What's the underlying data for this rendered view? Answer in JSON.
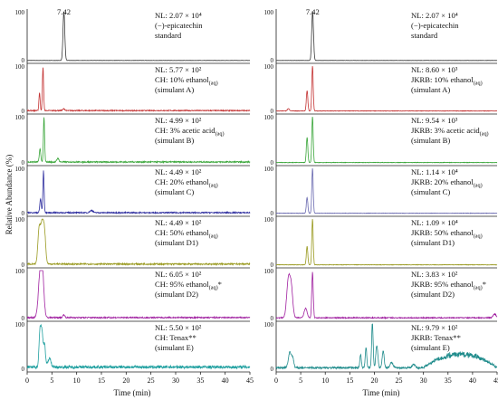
{
  "chart_data": {
    "type": "line",
    "ylabel": "Relative Abundance (%)",
    "xlabel": "Time (min)",
    "x_ticks": [
      "0",
      "5",
      "10",
      "15",
      "20",
      "25",
      "30",
      "35",
      "40",
      "45"
    ],
    "y_ticks": [
      "0",
      "100"
    ],
    "xlim": [
      0,
      45
    ],
    "ylim": [
      0,
      100
    ],
    "columns": [
      {
        "panels": [
          {
            "nl": "NL: 2.07 × 10⁴",
            "label": "(−)-epicatechin",
            "label2": "standard",
            "rt_label": "7.42",
            "color": "#3a3a3a",
            "peaks": [
              [
                7.42,
                100,
                0.18
              ]
            ],
            "noise": 0.5
          },
          {
            "nl": "NL: 5.77 × 10²",
            "label": "CH: 10% ethanol",
            "sub": "(aq)",
            "sim": "(simulant A)",
            "color": "#c43434",
            "peaks": [
              [
                2.5,
                40,
                0.12
              ],
              [
                3.2,
                95,
                0.12
              ],
              [
                7.4,
                4,
                0.2
              ]
            ],
            "noise": 2
          },
          {
            "nl": "NL: 4.99 × 10²",
            "label": "CH: 3% acetic acid",
            "sub": "(aq)",
            "sim": "(simulant B)",
            "color": "#3aa63a",
            "peaks": [
              [
                2.6,
                28,
                0.15
              ],
              [
                3.4,
                96,
                0.12
              ],
              [
                6.2,
                8,
                0.2
              ]
            ],
            "noise": 2.5
          },
          {
            "nl": "NL: 4.49 × 10²",
            "label": "CH: 20% ethanol",
            "sub": "(aq)",
            "sim": "(simulant C)",
            "color": "#3030a0",
            "peaks": [
              [
                2.7,
                30,
                0.15
              ],
              [
                3.3,
                92,
                0.12
              ],
              [
                13,
                5,
                0.3
              ]
            ],
            "noise": 2.5
          },
          {
            "nl": "NL: 4.49 × 10²",
            "label": "CH: 50% ethanol",
            "sub": "(aq)",
            "sim": "(simulant D1)",
            "color": "#9a9a20",
            "peaks": [
              [
                2.4,
                70,
                0.25
              ],
              [
                3.0,
                85,
                0.3
              ],
              [
                3.5,
                60,
                0.25
              ]
            ],
            "noise": 3
          },
          {
            "nl": "NL: 6.05 × 10²",
            "label": "CH: 95% ethanol",
            "sub": "(aq)",
            "star": "*",
            "sim": "(simulant D2)",
            "color": "#a020a0",
            "peaks": [
              [
                2.6,
                85,
                0.35
              ],
              [
                3.1,
                80,
                0.3
              ],
              [
                7.4,
                6,
                0.2
              ]
            ],
            "noise": 2.5
          },
          {
            "nl": "NL: 5.50 × 10²",
            "label": "CH: Tenax**",
            "sim": "(simulant E)",
            "color": "#20a0a0",
            "peaks": [
              [
                2.6,
                80,
                0.2
              ],
              [
                3.0,
                70,
                0.2
              ],
              [
                3.5,
                50,
                0.2
              ],
              [
                4.5,
                20,
                0.3
              ]
            ],
            "noise": 6
          }
        ]
      },
      {
        "panels": [
          {
            "nl": "NL: 2.07 × 10⁴",
            "label": "(−)-epicatechin",
            "label2": "standard",
            "rt_label": "7.42",
            "color": "#3a3a3a",
            "peaks": [
              [
                7.42,
                100,
                0.18
              ]
            ],
            "noise": 0.5
          },
          {
            "nl": "NL: 8.60 × 10³",
            "label": "JKRB: 10% ethanol",
            "sub": "(aq)",
            "sim": "(simulant A)",
            "color": "#c43434",
            "peaks": [
              [
                6.3,
                45,
                0.15
              ],
              [
                7.4,
                100,
                0.14
              ],
              [
                2.5,
                5,
                0.2
              ]
            ],
            "noise": 1
          },
          {
            "nl": "NL: 9.54 × 10³",
            "label": "JKRB: 3% acetic acid",
            "sub": "(aq)",
            "sim": "(simulant B)",
            "color": "#3aa63a",
            "peaks": [
              [
                6.3,
                55,
                0.15
              ],
              [
                7.4,
                100,
                0.14
              ]
            ],
            "noise": 1
          },
          {
            "nl": "NL: 1.14 × 10⁴",
            "label": "JKRB: 20% ethanol",
            "sub": "(aq)",
            "sim": "(simulant C)",
            "color": "#6a6ab0",
            "peaks": [
              [
                6.3,
                35,
                0.15
              ],
              [
                7.4,
                100,
                0.14
              ]
            ],
            "noise": 1
          },
          {
            "nl": "NL: 1.09 × 10⁴",
            "label": "JKRB: 50% ethanol",
            "sub": "(aq)",
            "sim": "(simulant D1)",
            "color": "#9a9a20",
            "peaks": [
              [
                6.3,
                40,
                0.15
              ],
              [
                7.4,
                100,
                0.14
              ]
            ],
            "noise": 1
          },
          {
            "nl": "NL: 3.83 × 10²",
            "label": "JKRB: 95% ethanol",
            "sub": "(aq)",
            "star": "*",
            "sim": "(simulant D2)",
            "color": "#a020a0",
            "peaks": [
              [
                2.5,
                80,
                0.35
              ],
              [
                3.1,
                55,
                0.3
              ],
              [
                6.0,
                20,
                0.3
              ],
              [
                7.4,
                95,
                0.15
              ],
              [
                44.5,
                8,
                0.3
              ]
            ],
            "noise": 2
          },
          {
            "nl": "NL: 9.79 × 10²",
            "label": "JKRB: Tenax**",
            "sim": "(simulant E)",
            "color": "#208c8c",
            "peaks": [
              [
                2.8,
                35,
                0.3
              ],
              [
                3.4,
                20,
                0.2
              ],
              [
                17.2,
                30,
                0.15
              ],
              [
                18.3,
                45,
                0.15
              ],
              [
                19.6,
                100,
                0.15
              ],
              [
                20.5,
                50,
                0.2
              ],
              [
                21.8,
                38,
                0.2
              ],
              [
                23.5,
                12,
                0.3
              ],
              [
                28,
                8,
                0.3
              ]
            ],
            "hump": [
              33,
              42,
              30
            ],
            "noise": 4
          }
        ]
      }
    ]
  }
}
